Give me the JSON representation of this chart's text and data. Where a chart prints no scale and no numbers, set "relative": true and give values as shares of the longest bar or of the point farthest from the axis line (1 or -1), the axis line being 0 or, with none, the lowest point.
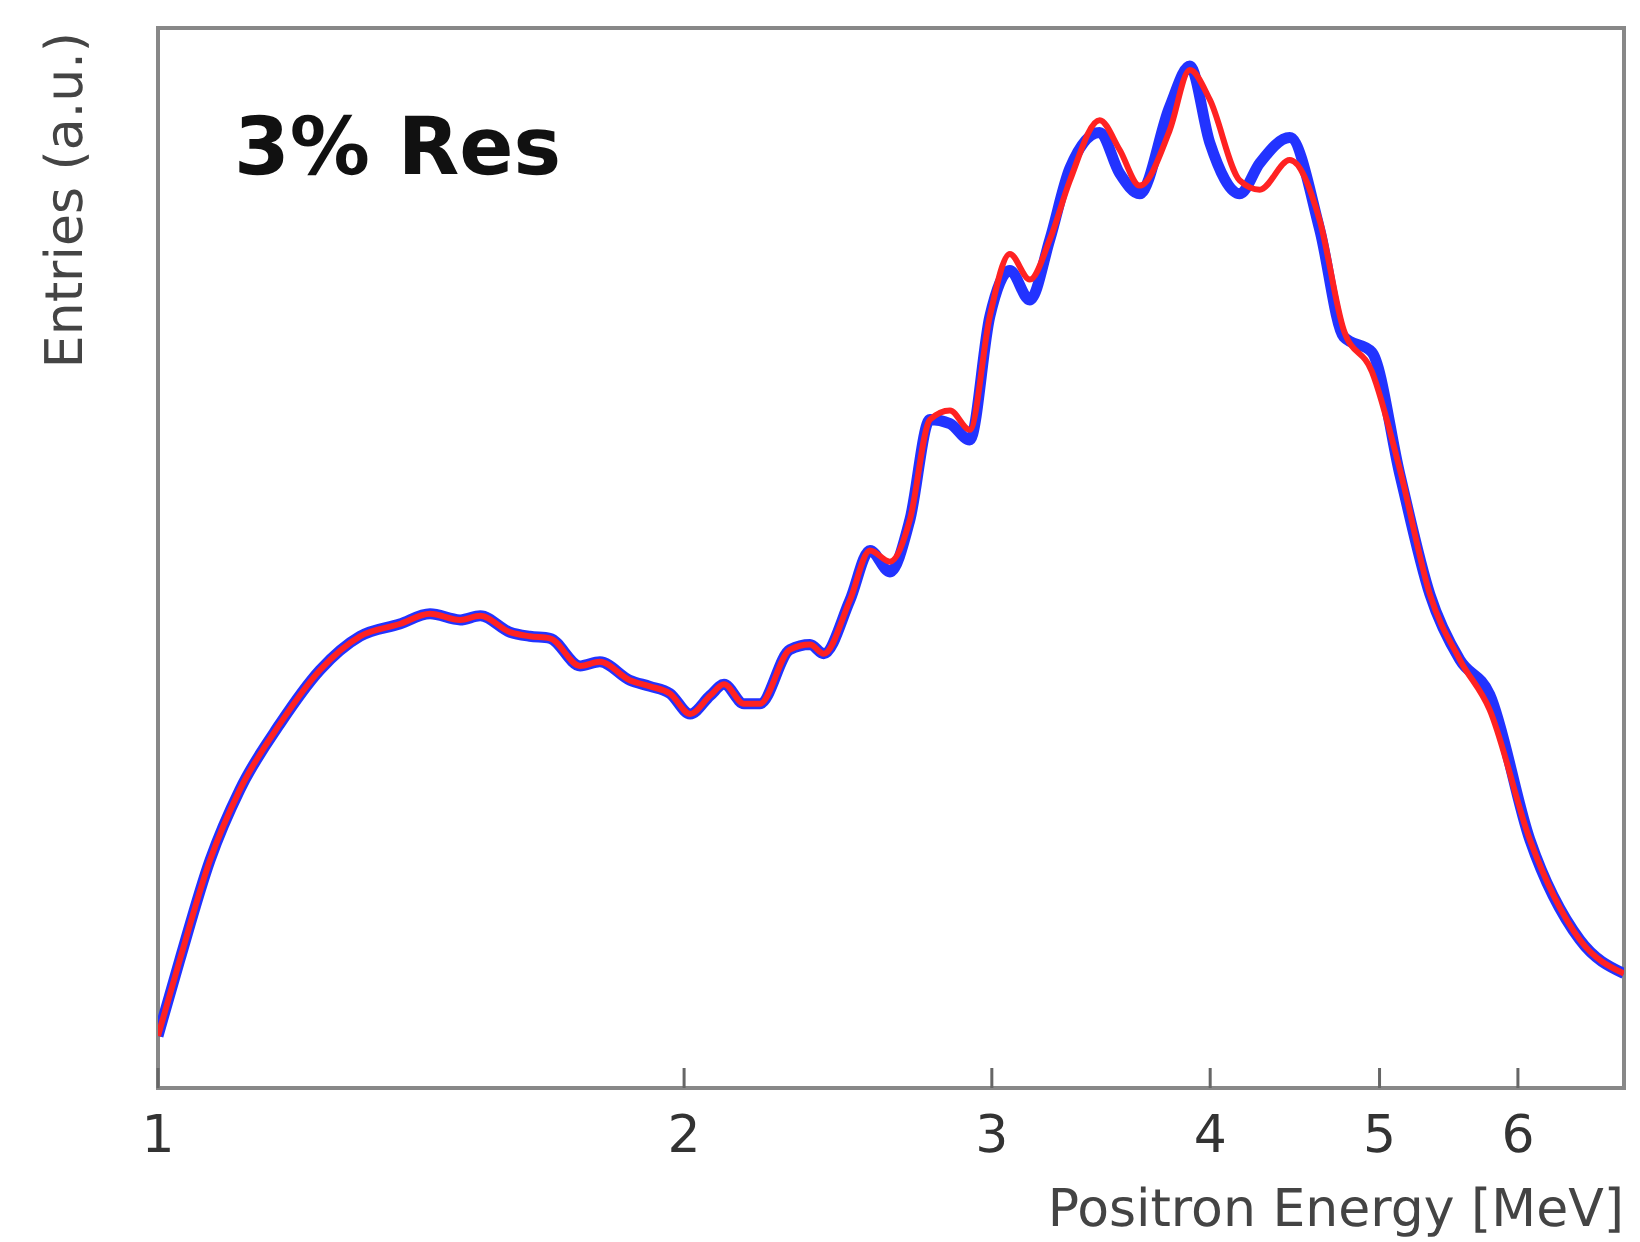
{
  "chart_data": {
    "type": "line",
    "relative": true,
    "xlabel": "Positron Energy [MeV]",
    "ylabel": "Entries (a.u.)",
    "annotations": [
      "3% Res"
    ],
    "log": "x",
    "xlim": [
      1,
      6.9
    ],
    "xticks": [
      1,
      2,
      3,
      4,
      5,
      6
    ],
    "tick_labels": "x",
    "grid": false,
    "marker": "none",
    "line_style": "solid",
    "x": [
      1.0,
      1.029,
      1.071,
      1.114,
      1.174,
      1.238,
      1.305,
      1.375,
      1.431,
      1.489,
      1.529,
      1.59,
      1.632,
      1.676,
      1.744,
      1.79,
      1.862,
      1.912,
      1.963,
      2.016,
      2.07,
      2.108,
      2.164,
      2.21,
      2.299,
      2.361,
      2.404,
      2.488,
      2.555,
      2.623,
      2.693,
      2.765,
      2.839,
      2.914,
      2.992,
      3.072,
      3.154,
      3.238,
      3.325,
      3.458,
      3.55,
      3.645,
      3.792,
      3.894,
      3.998,
      4.159,
      4.27,
      4.442,
      4.621,
      4.769,
      4.95,
      5.136,
      5.343,
      5.558,
      5.781,
      6.095,
      6.51,
      6.899
    ],
    "series": [
      {
        "color": "#2233ff",
        "values": [
          0.051,
          0.125,
          0.223,
          0.292,
          0.356,
          0.409,
          0.442,
          0.454,
          0.464,
          0.458,
          0.462,
          0.446,
          0.442,
          0.44,
          0.413,
          0.417,
          0.399,
          0.393,
          0.386,
          0.366,
          0.384,
          0.395,
          0.376,
          0.376,
          0.429,
          0.434,
          0.425,
          0.477,
          0.526,
          0.505,
          0.556,
          0.654,
          0.65,
          0.634,
          0.755,
          0.8,
          0.771,
          0.83,
          0.9,
          0.935,
          0.895,
          0.875,
          0.96,
          1.0,
          0.925,
          0.875,
          0.905,
          0.93,
          0.84,
          0.735,
          0.72,
          0.6,
          0.483,
          0.419,
          0.385,
          0.243,
          0.145,
          0.112
        ]
      },
      {
        "color": "#ff2222",
        "values": [
          0.051,
          0.125,
          0.223,
          0.292,
          0.356,
          0.409,
          0.442,
          0.454,
          0.464,
          0.458,
          0.462,
          0.446,
          0.442,
          0.44,
          0.413,
          0.417,
          0.399,
          0.393,
          0.386,
          0.366,
          0.384,
          0.395,
          0.376,
          0.376,
          0.429,
          0.434,
          0.425,
          0.477,
          0.526,
          0.515,
          0.556,
          0.654,
          0.663,
          0.644,
          0.755,
          0.816,
          0.791,
          0.83,
          0.888,
          0.947,
          0.918,
          0.883,
          0.937,
          0.996,
          0.967,
          0.888,
          0.879,
          0.908,
          0.849,
          0.742,
          0.701,
          0.605,
          0.483,
          0.419,
          0.37,
          0.243,
          0.145,
          0.112
        ]
      }
    ]
  }
}
